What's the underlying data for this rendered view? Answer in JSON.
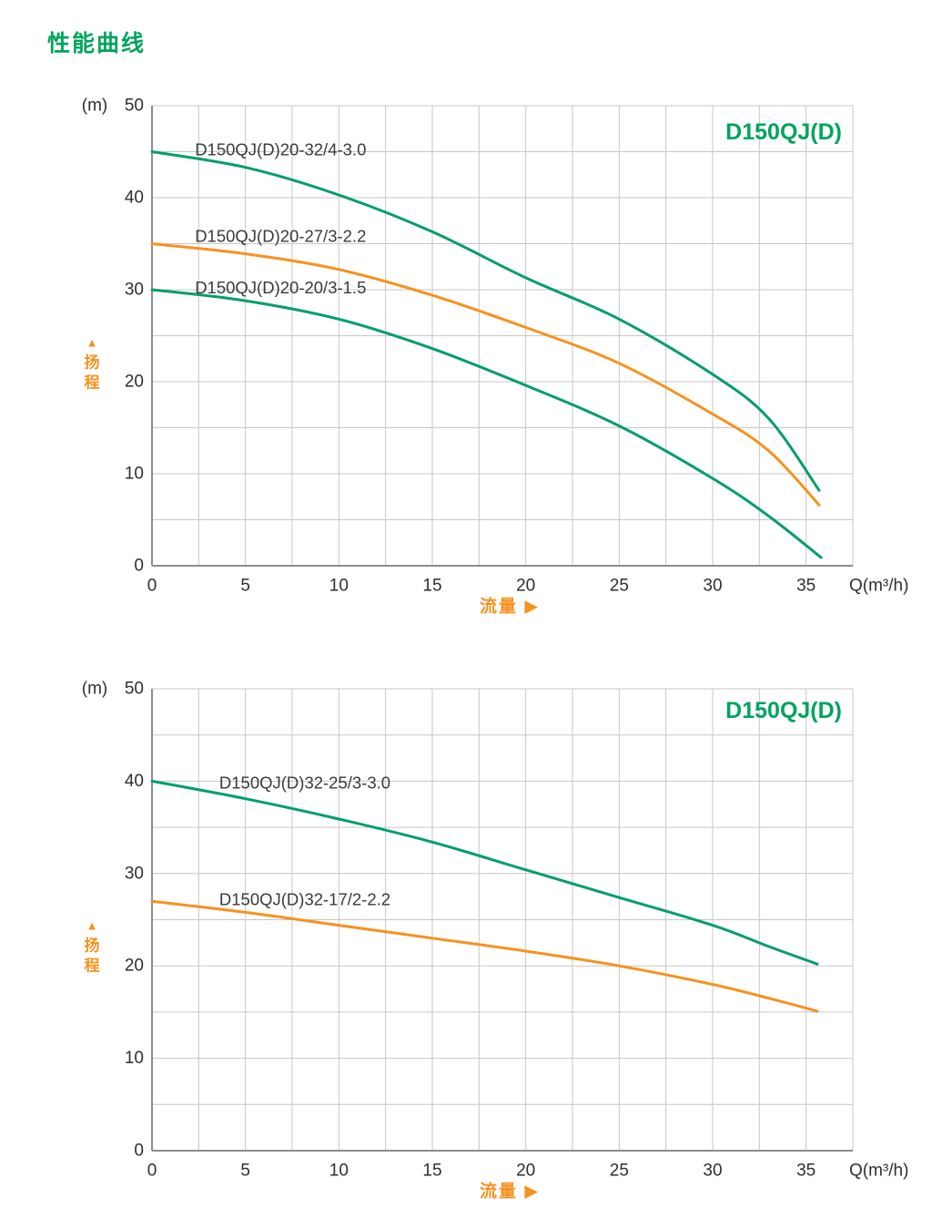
{
  "page": {
    "title": "性能曲线"
  },
  "colors": {
    "green": "#029F68",
    "orange": "#F6921E",
    "title_green": "#00A45C",
    "grid": "#C7C7C7",
    "axis": "#8D8D8D",
    "text": "#2F2F2F",
    "series_label_text": "#3A3A3A"
  },
  "chart_data": [
    {
      "type": "line",
      "title": "D150QJ(D)",
      "y_unit": "(m)",
      "ylabel": "扬程",
      "ylabel_arrow": "▲",
      "xlabel": "流量",
      "xlabel_arrow": "▶",
      "x_axis_label": "Q(m³/h)",
      "x_ticks": [
        0,
        5,
        10,
        15,
        20,
        25,
        30,
        35
      ],
      "y_ticks": [
        0,
        10,
        20,
        30,
        40,
        50
      ],
      "xlim": [
        0,
        37.5
      ],
      "ylim": [
        0,
        50
      ],
      "x_grid_step": 2.5,
      "y_grid_step": 5,
      "grid": true,
      "legend_position": "none",
      "series": [
        {
          "name": "D150QJ(D)20-32/4-3.0",
          "color": "green",
          "points": [
            [
              0,
              45
            ],
            [
              5,
              43.3
            ],
            [
              10,
              40.3
            ],
            [
              15,
              36.3
            ],
            [
              20,
              31.3
            ],
            [
              25,
              26.8
            ],
            [
              30,
              20.8
            ],
            [
              33,
              16.0
            ],
            [
              35.7,
              8.2
            ]
          ],
          "label_pos": [
            2.3,
            44.6
          ]
        },
        {
          "name": "D150QJ(D)20-27/3-2.2",
          "color": "orange",
          "points": [
            [
              0,
              35
            ],
            [
              5,
              33.9
            ],
            [
              10,
              32.2
            ],
            [
              15,
              29.4
            ],
            [
              20,
              25.9
            ],
            [
              25,
              22.0
            ],
            [
              30,
              16.5
            ],
            [
              33,
              12.5
            ],
            [
              35.7,
              6.6
            ]
          ],
          "label_pos": [
            2.3,
            35.2
          ]
        },
        {
          "name": "D150QJ(D)20-20/3-1.5",
          "color": "green",
          "points": [
            [
              0,
              30
            ],
            [
              5,
              28.8
            ],
            [
              10,
              26.8
            ],
            [
              15,
              23.6
            ],
            [
              20,
              19.6
            ],
            [
              25,
              15.2
            ],
            [
              30,
              9.5
            ],
            [
              33,
              5.4
            ],
            [
              35.8,
              0.9
            ]
          ],
          "label_pos": [
            2.3,
            29.6
          ]
        }
      ]
    },
    {
      "type": "line",
      "title": "D150QJ(D)",
      "y_unit": "(m)",
      "ylabel": "扬程",
      "ylabel_arrow": "▲",
      "xlabel": "流量",
      "xlabel_arrow": "▶",
      "x_axis_label": "Q(m³/h)",
      "x_ticks": [
        0,
        5,
        10,
        15,
        20,
        25,
        30,
        35
      ],
      "y_ticks": [
        0,
        10,
        20,
        30,
        40,
        50
      ],
      "xlim": [
        0,
        37.5
      ],
      "ylim": [
        0,
        50
      ],
      "x_grid_step": 2.5,
      "y_grid_step": 5,
      "grid": true,
      "legend_position": "none",
      "series": [
        {
          "name": "D150QJ(D)32-25/3-3.0",
          "color": "green",
          "points": [
            [
              0,
              40
            ],
            [
              5,
              38.1
            ],
            [
              10,
              35.9
            ],
            [
              15,
              33.4
            ],
            [
              20,
              30.4
            ],
            [
              25,
              27.4
            ],
            [
              30,
              24.4
            ],
            [
              33,
              22.1
            ],
            [
              35.6,
              20.2
            ]
          ],
          "label_pos": [
            3.6,
            39.2
          ]
        },
        {
          "name": "D150QJ(D)32-17/2-2.2",
          "color": "orange",
          "points": [
            [
              0,
              27
            ],
            [
              5,
              25.8
            ],
            [
              10,
              24.4
            ],
            [
              15,
              23.0
            ],
            [
              20,
              21.6
            ],
            [
              25,
              20.0
            ],
            [
              30,
              18.0
            ],
            [
              33,
              16.5
            ],
            [
              35.6,
              15.1
            ]
          ],
          "label_pos": [
            3.6,
            26.6
          ]
        }
      ]
    }
  ]
}
